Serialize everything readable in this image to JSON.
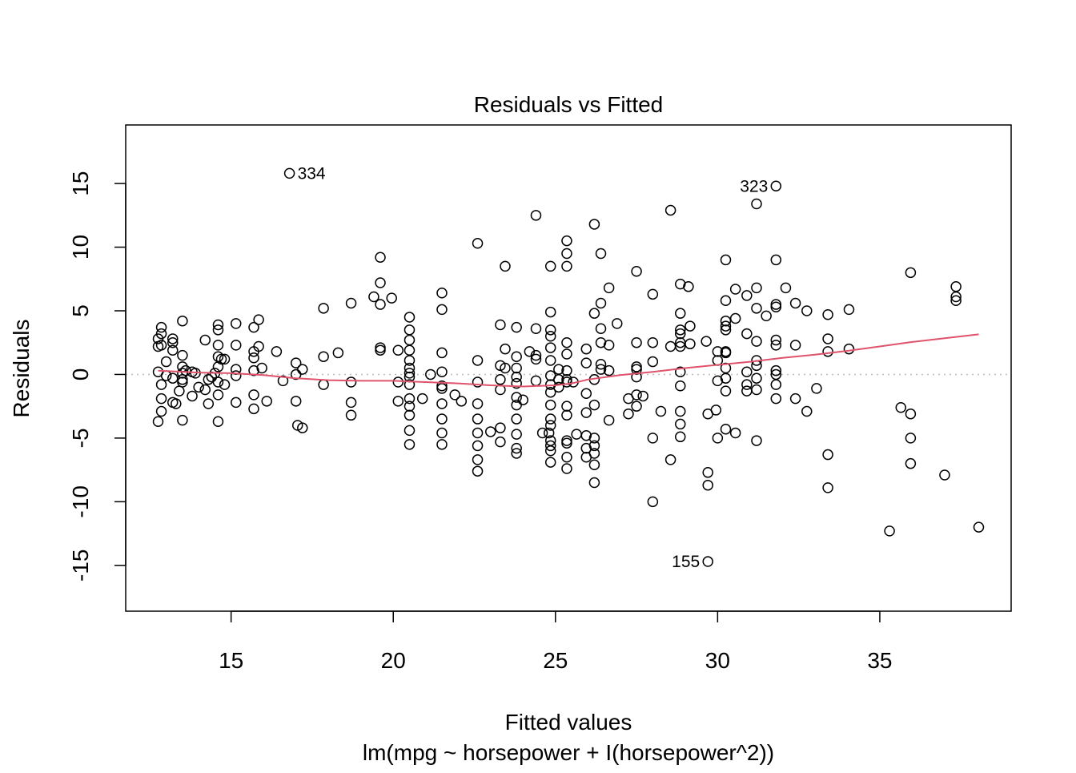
{
  "chart_data": {
    "type": "scatter",
    "title": "Residuals vs Fitted",
    "xlabel": "Fitted values",
    "ylabel": "Residuals",
    "subtitle": "lm(mpg ~ horsepower + I(horsepower^2))",
    "xlim": [
      11.75,
      39.05
    ],
    "ylim": [
      -18.6,
      19.6
    ],
    "x_ticks": [
      15,
      20,
      25,
      30,
      35
    ],
    "y_ticks": [
      -15,
      -10,
      -5,
      0,
      5,
      10,
      15
    ],
    "x_tick_labels": [
      "15",
      "20",
      "25",
      "30",
      "35"
    ],
    "y_tick_labels": [
      "-15",
      "-10",
      "-5",
      "0",
      "5",
      "10",
      "15"
    ],
    "reference_line": {
      "y": 0,
      "style": "dotted",
      "color": "#bebebe"
    },
    "point_color": "#000000",
    "smooth_color": "#df536b",
    "labeled_points": [
      {
        "label": "334",
        "x": 16.8,
        "y": 15.8,
        "label_side": "right"
      },
      {
        "label": "323",
        "x": 31.8,
        "y": 14.8,
        "label_side": "left"
      },
      {
        "label": "155",
        "x": 29.7,
        "y": -14.7,
        "label_side": "left"
      }
    ],
    "points": [
      [
        12.75,
        2.8
      ],
      [
        12.75,
        2.2
      ],
      [
        12.75,
        0.2
      ],
      [
        12.75,
        -3.7
      ],
      [
        12.85,
        3.7
      ],
      [
        12.85,
        3.2
      ],
      [
        12.85,
        2.3
      ],
      [
        12.85,
        -0.8
      ],
      [
        12.85,
        -1.9
      ],
      [
        12.85,
        -2.9
      ],
      [
        13.0,
        1.0
      ],
      [
        13.0,
        -0.1
      ],
      [
        13.2,
        2.8
      ],
      [
        13.2,
        2.5
      ],
      [
        13.2,
        1.9
      ],
      [
        13.2,
        -0.3
      ],
      [
        13.2,
        -2.2
      ],
      [
        13.3,
        -2.3
      ],
      [
        13.4,
        -1.3
      ],
      [
        13.5,
        4.2
      ],
      [
        13.5,
        1.5
      ],
      [
        13.5,
        0.6
      ],
      [
        13.5,
        0.1
      ],
      [
        13.5,
        -0.4
      ],
      [
        13.5,
        -0.6
      ],
      [
        13.5,
        -3.6
      ],
      [
        13.6,
        0.3
      ],
      [
        13.8,
        0.2
      ],
      [
        13.8,
        -1.7
      ],
      [
        13.9,
        0.1
      ],
      [
        14.0,
        -1.0
      ],
      [
        14.2,
        2.7
      ],
      [
        14.2,
        -1.2
      ],
      [
        14.3,
        -0.4
      ],
      [
        14.3,
        -2.3
      ],
      [
        14.4,
        -0.2
      ],
      [
        14.5,
        0.1
      ],
      [
        14.6,
        3.9
      ],
      [
        14.6,
        3.5
      ],
      [
        14.6,
        2.3
      ],
      [
        14.6,
        1.4
      ],
      [
        14.6,
        0.6
      ],
      [
        14.6,
        -0.6
      ],
      [
        14.6,
        -1.6
      ],
      [
        14.6,
        -3.7
      ],
      [
        14.7,
        1.2
      ],
      [
        14.8,
        1.2
      ],
      [
        14.8,
        -0.8
      ],
      [
        15.15,
        4.0
      ],
      [
        15.15,
        2.3
      ],
      [
        15.15,
        0.4
      ],
      [
        15.15,
        -0.1
      ],
      [
        15.15,
        -2.2
      ],
      [
        15.7,
        3.7
      ],
      [
        15.7,
        1.8
      ],
      [
        15.7,
        1.3
      ],
      [
        15.7,
        0.3
      ],
      [
        15.7,
        -1.6
      ],
      [
        15.7,
        -2.7
      ],
      [
        15.85,
        4.3
      ],
      [
        15.85,
        2.2
      ],
      [
        15.95,
        0.5
      ],
      [
        16.1,
        -2.1
      ],
      [
        16.4,
        1.8
      ],
      [
        16.6,
        -0.5
      ],
      [
        17.0,
        0.9
      ],
      [
        17.0,
        0.0
      ],
      [
        17.0,
        -2.1
      ],
      [
        17.05,
        -4.0
      ],
      [
        17.2,
        0.4
      ],
      [
        17.2,
        -4.2
      ],
      [
        17.85,
        5.2
      ],
      [
        17.85,
        1.4
      ],
      [
        17.85,
        -0.8
      ],
      [
        18.3,
        1.7
      ],
      [
        18.7,
        5.6
      ],
      [
        18.7,
        -0.6
      ],
      [
        18.7,
        -2.2
      ],
      [
        18.7,
        -3.2
      ],
      [
        19.4,
        6.1
      ],
      [
        19.6,
        9.2
      ],
      [
        19.6,
        7.2
      ],
      [
        19.6,
        5.5
      ],
      [
        19.6,
        2.1
      ],
      [
        19.6,
        1.9
      ],
      [
        19.95,
        6.0
      ],
      [
        20.15,
        1.9
      ],
      [
        20.15,
        -0.6
      ],
      [
        20.15,
        -2.1
      ],
      [
        20.5,
        4.5
      ],
      [
        20.5,
        3.5
      ],
      [
        20.5,
        2.7
      ],
      [
        20.5,
        1.9
      ],
      [
        20.5,
        1.1
      ],
      [
        20.5,
        0.5
      ],
      [
        20.5,
        0.1
      ],
      [
        20.5,
        -0.2
      ],
      [
        20.5,
        -0.8
      ],
      [
        20.5,
        -1.9
      ],
      [
        20.5,
        -2.5
      ],
      [
        20.5,
        -3.2
      ],
      [
        20.5,
        -4.4
      ],
      [
        20.5,
        -5.5
      ],
      [
        20.9,
        -1.9
      ],
      [
        21.15,
        0.0
      ],
      [
        21.5,
        6.4
      ],
      [
        21.5,
        5.1
      ],
      [
        21.5,
        1.7
      ],
      [
        21.5,
        0.2
      ],
      [
        21.5,
        -0.9
      ],
      [
        21.5,
        -1.1
      ],
      [
        21.5,
        -2.3
      ],
      [
        21.5,
        -3.5
      ],
      [
        21.5,
        -4.6
      ],
      [
        21.5,
        -5.5
      ],
      [
        21.9,
        -1.6
      ],
      [
        22.1,
        -2.1
      ],
      [
        22.6,
        10.3
      ],
      [
        22.6,
        1.1
      ],
      [
        22.6,
        -0.6
      ],
      [
        22.6,
        -2.3
      ],
      [
        22.6,
        -3.5
      ],
      [
        22.6,
        -4.6
      ],
      [
        22.6,
        -5.6
      ],
      [
        22.6,
        -6.7
      ],
      [
        22.6,
        -7.6
      ],
      [
        23.0,
        -4.5
      ],
      [
        23.3,
        3.9
      ],
      [
        23.3,
        0.7
      ],
      [
        23.3,
        -0.4
      ],
      [
        23.3,
        -1.2
      ],
      [
        23.3,
        -4.2
      ],
      [
        23.3,
        -5.3
      ],
      [
        23.45,
        8.5
      ],
      [
        23.45,
        2.0
      ],
      [
        23.45,
        0.5
      ],
      [
        23.8,
        3.7
      ],
      [
        23.8,
        1.4
      ],
      [
        23.8,
        0.5
      ],
      [
        23.8,
        -0.2
      ],
      [
        23.8,
        -0.7
      ],
      [
        23.8,
        -1.8
      ],
      [
        23.8,
        -2.4
      ],
      [
        23.8,
        -3.5
      ],
      [
        23.8,
        -4.7
      ],
      [
        23.8,
        -5.8
      ],
      [
        23.8,
        -6.2
      ],
      [
        24.0,
        -2.0
      ],
      [
        24.2,
        1.8
      ],
      [
        24.4,
        12.5
      ],
      [
        24.4,
        3.6
      ],
      [
        24.4,
        1.5
      ],
      [
        24.4,
        1.2
      ],
      [
        24.4,
        -0.5
      ],
      [
        24.6,
        -4.6
      ],
      [
        24.8,
        -4.6
      ],
      [
        24.85,
        8.5
      ],
      [
        24.85,
        4.9
      ],
      [
        24.85,
        3.5
      ],
      [
        24.85,
        3.0
      ],
      [
        24.85,
        2.1
      ],
      [
        24.85,
        1.1
      ],
      [
        24.85,
        -0.1
      ],
      [
        24.85,
        -0.8
      ],
      [
        24.85,
        -1.4
      ],
      [
        24.85,
        -2.4
      ],
      [
        24.85,
        -3.5
      ],
      [
        24.85,
        -4.0
      ],
      [
        24.85,
        -5.2
      ],
      [
        24.85,
        -5.6
      ],
      [
        24.85,
        -6.0
      ],
      [
        24.85,
        -6.9
      ],
      [
        25.1,
        0.4
      ],
      [
        25.1,
        -0.4
      ],
      [
        25.1,
        -1.0
      ],
      [
        25.35,
        10.5
      ],
      [
        25.35,
        9.5
      ],
      [
        25.35,
        8.5
      ],
      [
        25.35,
        2.5
      ],
      [
        25.35,
        1.6
      ],
      [
        25.35,
        0.3
      ],
      [
        25.35,
        -0.4
      ],
      [
        25.35,
        -0.6
      ],
      [
        25.35,
        -2.5
      ],
      [
        25.35,
        -3.2
      ],
      [
        25.35,
        -5.2
      ],
      [
        25.35,
        -5.4
      ],
      [
        25.35,
        -6.5
      ],
      [
        25.35,
        -7.4
      ],
      [
        25.55,
        -0.6
      ],
      [
        25.65,
        -4.7
      ],
      [
        25.95,
        2.0
      ],
      [
        25.95,
        0.9
      ],
      [
        25.95,
        -1.5
      ],
      [
        25.95,
        -3.0
      ],
      [
        25.95,
        -4.8
      ],
      [
        25.95,
        -5.8
      ],
      [
        25.95,
        -6.5
      ],
      [
        26.2,
        11.8
      ],
      [
        26.2,
        4.8
      ],
      [
        26.2,
        -0.4
      ],
      [
        26.2,
        -2.4
      ],
      [
        26.2,
        -5.0
      ],
      [
        26.2,
        -5.6
      ],
      [
        26.2,
        -6.2
      ],
      [
        26.2,
        -7.1
      ],
      [
        26.2,
        -8.5
      ],
      [
        26.4,
        9.5
      ],
      [
        26.4,
        5.6
      ],
      [
        26.4,
        3.6
      ],
      [
        26.4,
        2.5
      ],
      [
        26.4,
        0.8
      ],
      [
        26.4,
        0.4
      ],
      [
        26.65,
        6.8
      ],
      [
        26.65,
        2.3
      ],
      [
        26.65,
        0.3
      ],
      [
        26.65,
        -3.6
      ],
      [
        26.9,
        4.0
      ],
      [
        27.25,
        -1.9
      ],
      [
        27.25,
        -3.1
      ],
      [
        27.5,
        8.1
      ],
      [
        27.5,
        2.5
      ],
      [
        27.5,
        0.6
      ],
      [
        27.5,
        0.4
      ],
      [
        27.5,
        -0.2
      ],
      [
        27.5,
        -1.6
      ],
      [
        27.5,
        -2.5
      ],
      [
        27.7,
        -1.7
      ],
      [
        28.0,
        6.3
      ],
      [
        28.0,
        2.5
      ],
      [
        28.0,
        1.0
      ],
      [
        28.0,
        -5.0
      ],
      [
        28.0,
        -10.0
      ],
      [
        28.25,
        -2.9
      ],
      [
        28.55,
        12.9
      ],
      [
        28.55,
        2.2
      ],
      [
        28.55,
        -6.7
      ],
      [
        28.85,
        7.1
      ],
      [
        28.85,
        4.8
      ],
      [
        28.85,
        3.5
      ],
      [
        28.85,
        3.2
      ],
      [
        28.85,
        2.5
      ],
      [
        28.85,
        2.2
      ],
      [
        28.85,
        0.2
      ],
      [
        28.85,
        -0.9
      ],
      [
        28.85,
        -2.9
      ],
      [
        28.85,
        -3.9
      ],
      [
        28.85,
        -4.9
      ],
      [
        29.1,
        6.9
      ],
      [
        29.15,
        3.8
      ],
      [
        29.15,
        2.4
      ],
      [
        29.65,
        2.6
      ],
      [
        29.7,
        -3.1
      ],
      [
        29.7,
        -7.7
      ],
      [
        29.7,
        -8.7
      ],
      [
        29.95,
        -2.8
      ],
      [
        30.0,
        1.8
      ],
      [
        30.0,
        1.1
      ],
      [
        30.0,
        -0.5
      ],
      [
        30.0,
        -5.0
      ],
      [
        30.25,
        9.0
      ],
      [
        30.25,
        5.8
      ],
      [
        30.25,
        4.2
      ],
      [
        30.25,
        3.8
      ],
      [
        30.25,
        3.5
      ],
      [
        30.25,
        1.8
      ],
      [
        30.25,
        1.7
      ],
      [
        30.25,
        0.5
      ],
      [
        30.25,
        -0.3
      ],
      [
        30.25,
        -1.3
      ],
      [
        30.25,
        -4.3
      ],
      [
        30.55,
        4.4
      ],
      [
        30.55,
        6.7
      ],
      [
        30.55,
        -4.6
      ],
      [
        30.9,
        6.2
      ],
      [
        30.9,
        3.2
      ],
      [
        30.9,
        0.2
      ],
      [
        30.9,
        -0.8
      ],
      [
        30.9,
        -1.3
      ],
      [
        31.2,
        13.4
      ],
      [
        31.2,
        6.8
      ],
      [
        31.2,
        5.2
      ],
      [
        31.2,
        2.6
      ],
      [
        31.2,
        1.1
      ],
      [
        31.2,
        0.7
      ],
      [
        31.2,
        -0.3
      ],
      [
        31.2,
        -1.2
      ],
      [
        31.2,
        -5.2
      ],
      [
        31.5,
        4.6
      ],
      [
        31.8,
        9.0
      ],
      [
        31.8,
        5.5
      ],
      [
        31.8,
        5.3
      ],
      [
        31.8,
        2.7
      ],
      [
        31.8,
        2.3
      ],
      [
        31.8,
        0.3
      ],
      [
        31.8,
        0.0
      ],
      [
        31.8,
        -0.8
      ],
      [
        31.8,
        -1.9
      ],
      [
        32.1,
        6.8
      ],
      [
        32.4,
        5.6
      ],
      [
        32.4,
        2.3
      ],
      [
        32.4,
        -1.9
      ],
      [
        32.75,
        5.0
      ],
      [
        32.75,
        -2.9
      ],
      [
        33.05,
        -1.1
      ],
      [
        33.4,
        4.7
      ],
      [
        33.4,
        2.8
      ],
      [
        33.4,
        1.8
      ],
      [
        33.4,
        -6.3
      ],
      [
        33.4,
        -8.9
      ],
      [
        34.05,
        5.1
      ],
      [
        34.05,
        2.0
      ],
      [
        35.3,
        -12.3
      ],
      [
        35.65,
        -2.6
      ],
      [
        35.95,
        8.0
      ],
      [
        35.95,
        -3.1
      ],
      [
        35.95,
        -5.0
      ],
      [
        35.95,
        -7.0
      ],
      [
        37.0,
        -7.9
      ],
      [
        37.35,
        6.9
      ],
      [
        37.35,
        6.1
      ],
      [
        37.35,
        5.8
      ],
      [
        38.05,
        -12.0
      ]
    ],
    "smooth": [
      [
        12.75,
        0.3
      ],
      [
        14.0,
        0.15
      ],
      [
        15.0,
        0.1
      ],
      [
        16.0,
        -0.05
      ],
      [
        17.0,
        -0.3
      ],
      [
        18.0,
        -0.45
      ],
      [
        19.0,
        -0.5
      ],
      [
        20.0,
        -0.5
      ],
      [
        21.0,
        -0.6
      ],
      [
        22.0,
        -0.7
      ],
      [
        23.0,
        -0.85
      ],
      [
        24.0,
        -0.95
      ],
      [
        25.0,
        -0.85
      ],
      [
        25.5,
        -0.7
      ],
      [
        26.0,
        -0.4
      ],
      [
        27.0,
        -0.05
      ],
      [
        28.0,
        0.2
      ],
      [
        29.0,
        0.5
      ],
      [
        30.0,
        0.75
      ],
      [
        31.0,
        1.0
      ],
      [
        32.0,
        1.3
      ],
      [
        33.0,
        1.55
      ],
      [
        34.0,
        1.85
      ],
      [
        35.0,
        2.2
      ],
      [
        36.0,
        2.55
      ],
      [
        37.0,
        2.85
      ],
      [
        38.05,
        3.15
      ]
    ]
  }
}
